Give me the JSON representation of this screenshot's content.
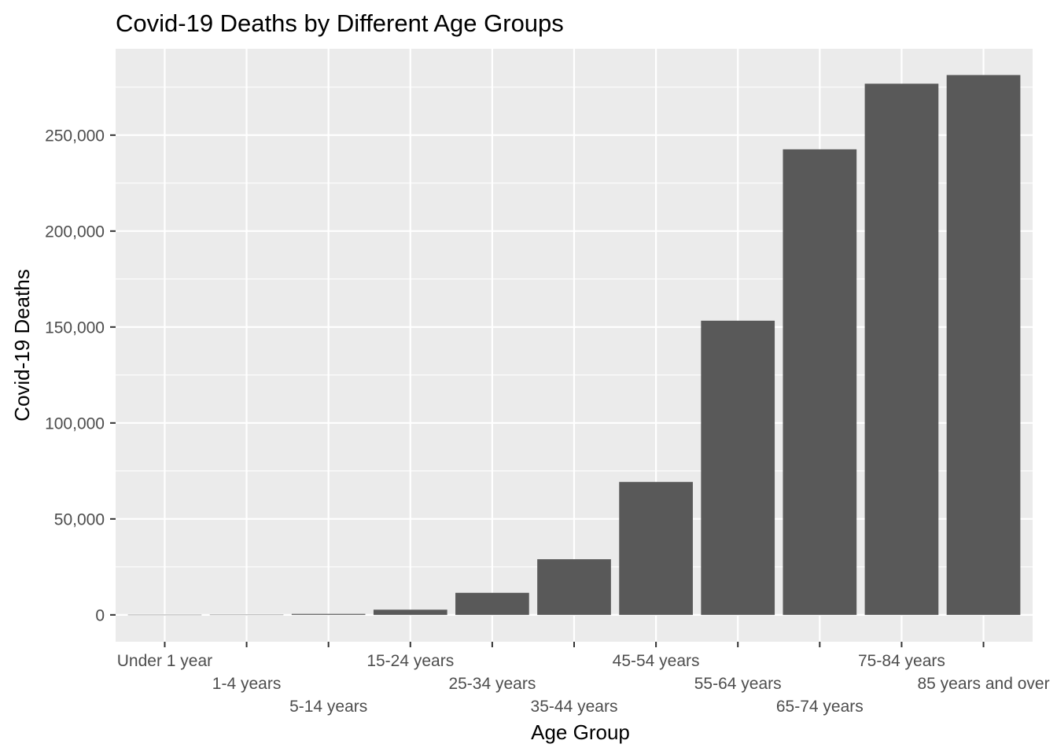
{
  "chart_data": {
    "type": "bar",
    "title": "Covid-19 Deaths by Different Age Groups",
    "xlabel": "Age Group",
    "ylabel": "Covid-19 Deaths",
    "categories": [
      "Under 1 year",
      "1-4 years",
      "5-14 years",
      "15-24 years",
      "25-34 years",
      "35-44 years",
      "45-54 years",
      "55-64 years",
      "65-74 years",
      "75-84 years",
      "85 years and over"
    ],
    "values": [
      60,
      90,
      500,
      2700,
      11500,
      29000,
      69300,
      153300,
      242600,
      276800,
      281300
    ],
    "ylim": [
      -14000,
      295000
    ],
    "y_ticks": [
      0,
      50000,
      100000,
      150000,
      200000,
      250000
    ],
    "y_tick_labels": [
      "0",
      "50,000",
      "100,000",
      "150,000",
      "200,000",
      "250,000"
    ],
    "grid": true,
    "legend": "none",
    "colors": {
      "bar": "#595959",
      "panel": "#ebebeb",
      "grid": "#ffffff",
      "tick_text": "#4d4d4d",
      "tick_mark": "#333333"
    }
  }
}
